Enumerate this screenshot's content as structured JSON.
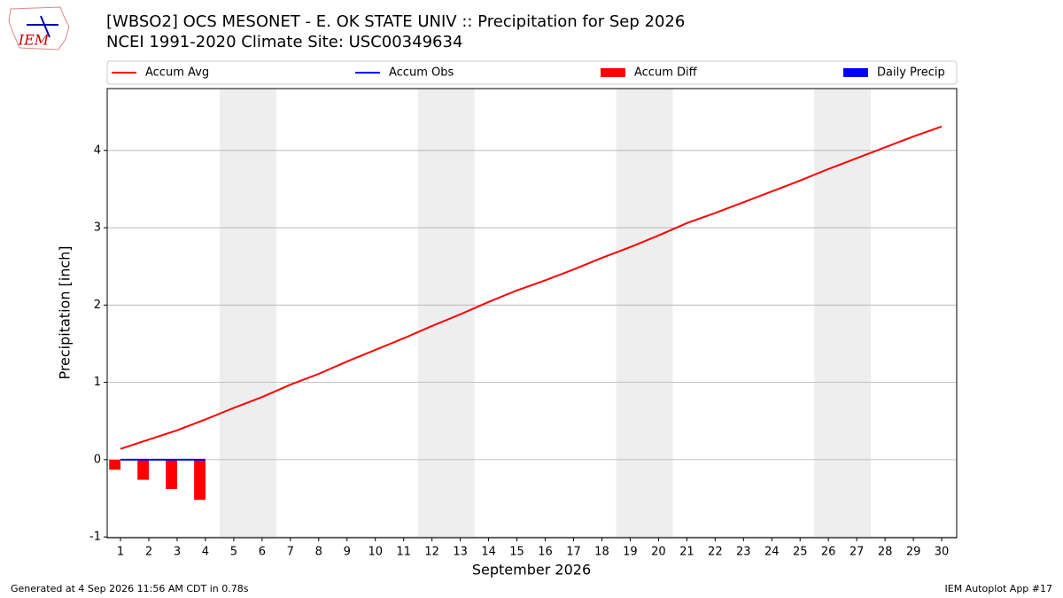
{
  "chart_data": {
    "type": "combo",
    "logo_text": "IEM",
    "title": "[WBSO2] OCS MESONET - E. OK STATE UNIV :: Precipitation for Sep 2026",
    "subtitle": "NCEI 1991-2020 Climate Site: USC00349634",
    "x_label": "September 2026",
    "y_label": "Precipitation [inch]",
    "x": [
      1,
      2,
      3,
      4,
      5,
      6,
      7,
      8,
      9,
      10,
      11,
      12,
      13,
      14,
      15,
      16,
      17,
      18,
      19,
      20,
      21,
      22,
      23,
      24,
      25,
      26,
      27,
      28,
      29,
      30
    ],
    "series": [
      {
        "name": "Accum Avg",
        "type": "line",
        "color": "#ff0000",
        "values": [
          0.14,
          0.26,
          0.38,
          0.52,
          0.67,
          0.81,
          0.97,
          1.11,
          1.27,
          1.42,
          1.57,
          1.73,
          1.88,
          2.04,
          2.19,
          2.32,
          2.46,
          2.61,
          2.75,
          2.9,
          3.06,
          3.19,
          3.33,
          3.47,
          3.61,
          3.76,
          3.9,
          4.04,
          4.18,
          4.31
        ]
      },
      {
        "name": "Accum Obs",
        "type": "line",
        "color": "#0000ff",
        "values": [
          0,
          0,
          0,
          0,
          null,
          null,
          null,
          null,
          null,
          null,
          null,
          null,
          null,
          null,
          null,
          null,
          null,
          null,
          null,
          null,
          null,
          null,
          null,
          null,
          null,
          null,
          null,
          null,
          null,
          null
        ]
      },
      {
        "name": "Accum Diff",
        "type": "bar",
        "color": "#ff0000",
        "values": [
          -0.13,
          -0.26,
          -0.38,
          -0.52,
          null,
          null,
          null,
          null,
          null,
          null,
          null,
          null,
          null,
          null,
          null,
          null,
          null,
          null,
          null,
          null,
          null,
          null,
          null,
          null,
          null,
          null,
          null,
          null,
          null,
          null
        ]
      },
      {
        "name": "Daily Precip",
        "type": "bar",
        "color": "#0000ff",
        "values": [
          0,
          0,
          0,
          0,
          null,
          null,
          null,
          null,
          null,
          null,
          null,
          null,
          null,
          null,
          null,
          null,
          null,
          null,
          null,
          null,
          null,
          null,
          null,
          null,
          null,
          null,
          null,
          null,
          null,
          null
        ]
      }
    ],
    "weekend_spans": [
      [
        4.5,
        6.5
      ],
      [
        11.5,
        13.5
      ],
      [
        18.5,
        20.5
      ],
      [
        25.5,
        27.5
      ]
    ],
    "span_color": "#eeeeee",
    "xlim": [
      0.53,
      30.53
    ],
    "xticks": [
      1,
      2,
      3,
      4,
      5,
      6,
      7,
      8,
      9,
      10,
      11,
      12,
      13,
      14,
      15,
      16,
      17,
      18,
      19,
      20,
      21,
      22,
      23,
      24,
      25,
      26,
      27,
      28,
      29,
      30
    ],
    "ylim": [
      -1.01,
      4.8
    ],
    "yticks": [
      -1,
      0,
      1,
      2,
      3,
      4
    ],
    "grid": true,
    "legend": "top"
  },
  "footer": {
    "left": "Generated at 4 Sep 2026 11:56 AM CDT in 0.78s",
    "right": "IEM Autoplot App #17"
  }
}
